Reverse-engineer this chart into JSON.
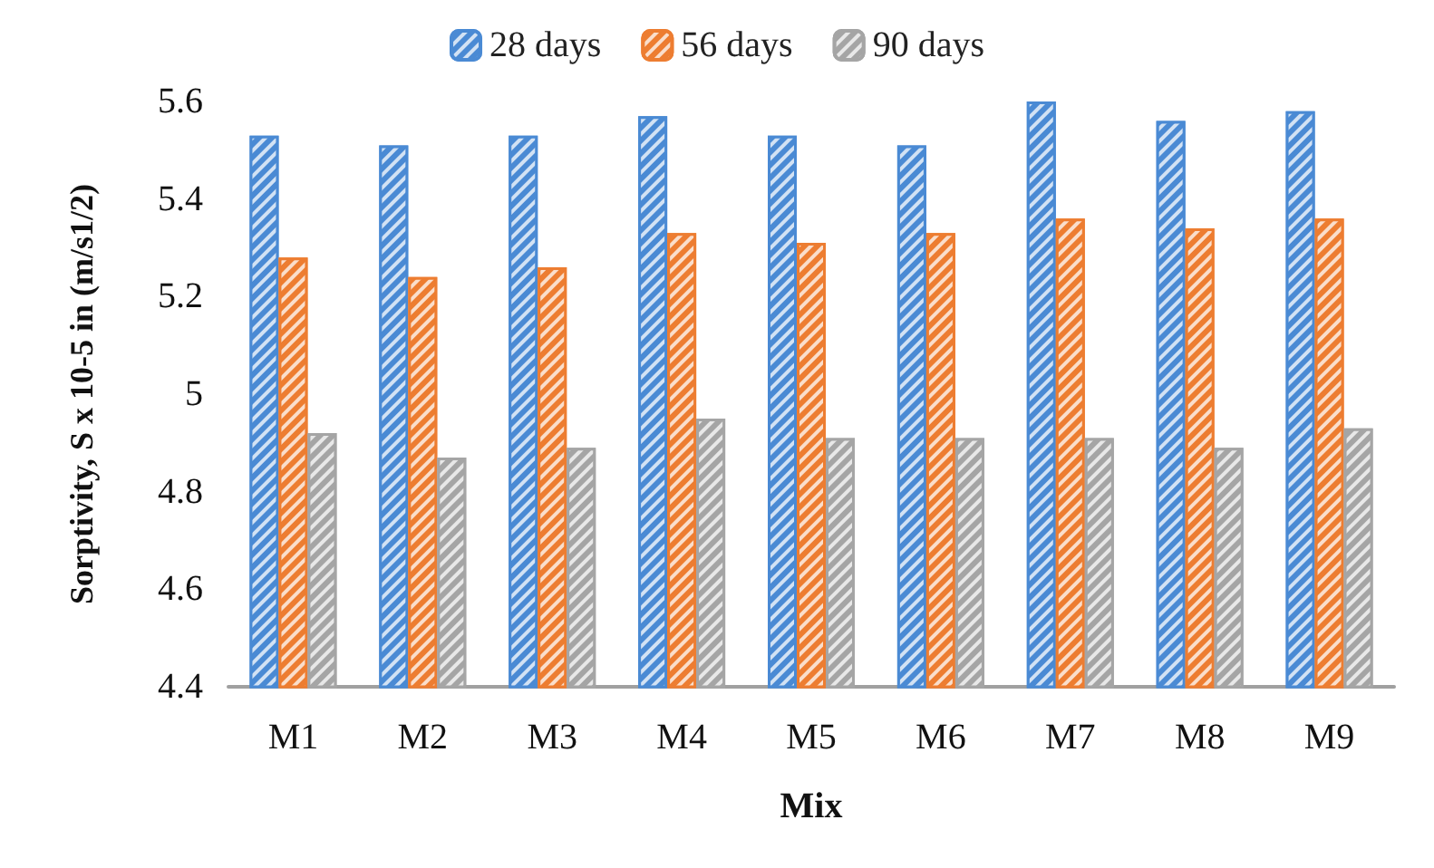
{
  "chart_data": {
    "type": "bar",
    "xlabel": "Mix",
    "ylabel": "Sorptivity, S x 10-5 in (m/s1/2)",
    "categories": [
      "M1",
      "M2",
      "M3",
      "M4",
      "M5",
      "M6",
      "M7",
      "M8",
      "M9"
    ],
    "series": [
      {
        "name": "28 days",
        "color": "#4a8ad4",
        "values": [
          5.53,
          5.51,
          5.53,
          5.57,
          5.53,
          5.51,
          5.6,
          5.56,
          5.58
        ]
      },
      {
        "name": "56 days",
        "color": "#ed7d31",
        "values": [
          5.28,
          5.24,
          5.26,
          5.33,
          5.31,
          5.33,
          5.36,
          5.34,
          5.36
        ]
      },
      {
        "name": "90 days",
        "color": "#a5a5a5",
        "values": [
          4.92,
          4.87,
          4.89,
          4.95,
          4.91,
          4.91,
          4.91,
          4.89,
          4.93
        ]
      }
    ],
    "ylim": [
      4.4,
      5.6
    ],
    "yticks": [
      4.4,
      4.6,
      4.8,
      5,
      5.2,
      5.4,
      5.6
    ],
    "grid": false,
    "legend": "top"
  }
}
